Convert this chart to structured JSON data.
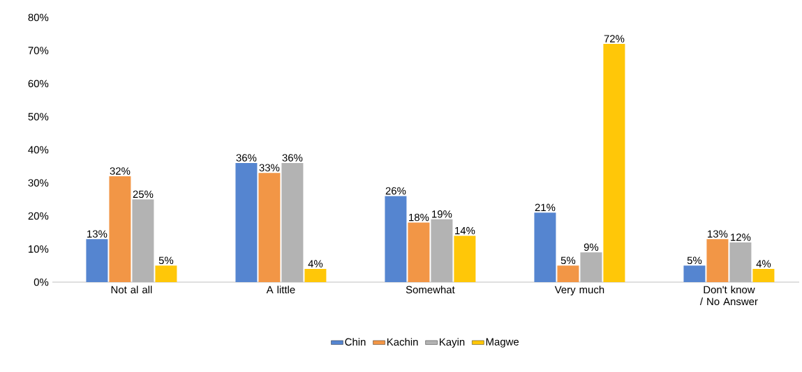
{
  "chart_data": {
    "type": "bar",
    "categories": [
      "Not al all",
      "A little",
      "Somewhat",
      "Very much",
      "Don't know / No Answer"
    ],
    "series": [
      {
        "name": "Chin",
        "color": "#5585d0",
        "values": [
          13,
          36,
          26,
          21,
          5
        ],
        "value_labels": [
          "13%",
          "36%",
          "26%",
          "21%",
          "5%"
        ]
      },
      {
        "name": "Kachin",
        "color": "#f29646",
        "values": [
          32,
          33,
          18,
          5,
          13
        ],
        "value_labels": [
          "32%",
          "33%",
          "18%",
          "5%",
          "13%"
        ]
      },
      {
        "name": "Kayin",
        "color": "#b3b3b3",
        "values": [
          25,
          36,
          19,
          9,
          12
        ],
        "value_labels": [
          "25%",
          "36%",
          "19%",
          "9%",
          "12%"
        ]
      },
      {
        "name": "Magwe",
        "color": "#ffc708",
        "values": [
          5,
          4,
          14,
          72,
          4
        ],
        "value_labels": [
          "5%",
          "4%",
          "14%",
          "72%",
          "4%"
        ]
      }
    ],
    "ylim": [
      0,
      80
    ],
    "yticks": [
      {
        "value": 0,
        "label": "0%"
      },
      {
        "value": 10,
        "label": "10%"
      },
      {
        "value": 20,
        "label": "20%"
      },
      {
        "value": 30,
        "label": "30%"
      },
      {
        "value": 40,
        "label": "40%"
      },
      {
        "value": 50,
        "label": "50%"
      },
      {
        "value": 60,
        "label": "60%"
      },
      {
        "value": 70,
        "label": "70%"
      },
      {
        "value": 80,
        "label": "80%"
      }
    ],
    "legend": "bottom",
    "grid": false
  }
}
